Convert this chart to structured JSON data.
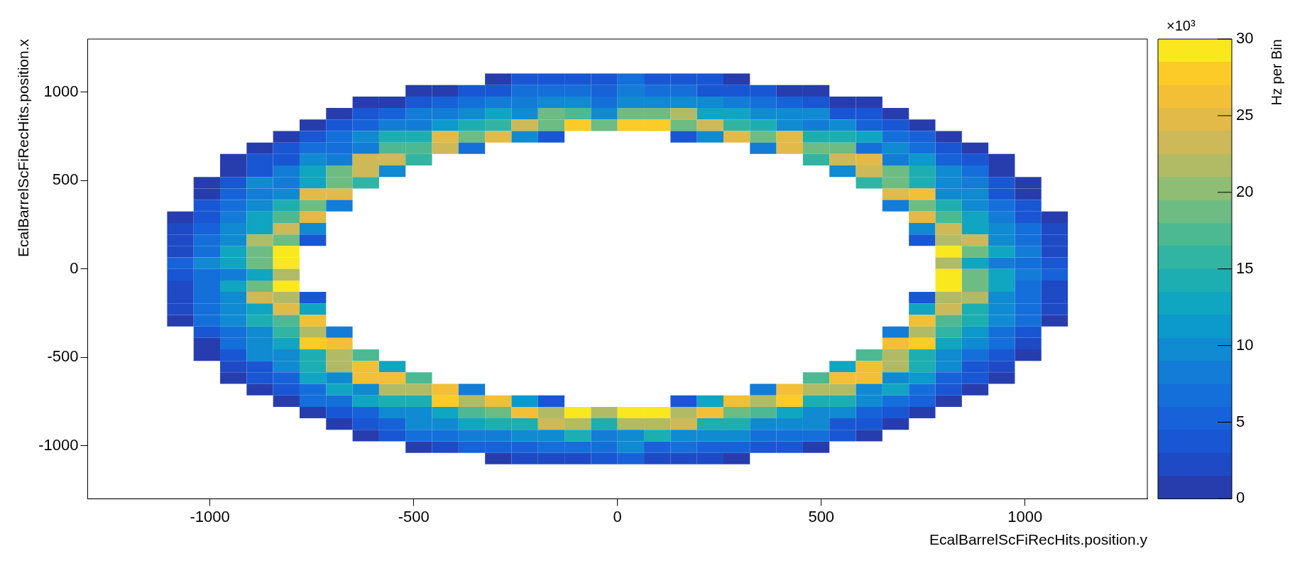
{
  "chart_data": {
    "type": "heatmap",
    "xlabel": "EcalBarrelScFiRecHits.position.y",
    "ylabel": "EcalBarrelScFiRecHits.position.x",
    "clabel": "Hz per Bin",
    "annotations": [
      "×10³"
    ],
    "xlim": [
      -1300,
      1300
    ],
    "ylim": [
      -1300,
      1300
    ],
    "xticks": [
      -1000,
      -500,
      0,
      500,
      1000
    ],
    "yticks": [
      -1000,
      -500,
      0,
      500,
      1000
    ],
    "clim": [
      0,
      30
    ],
    "cticks": [
      0,
      5,
      10,
      15,
      20,
      25,
      30
    ],
    "x": [
      -1072.5,
      -1007.5,
      -942.5,
      -877.5,
      -812.5,
      -747.5,
      -682.5,
      -617.5,
      -552.5,
      -487.5,
      -422.5,
      -357.5,
      -292.5,
      -227.5,
      -162.5,
      -97.5,
      -32.5,
      32.5,
      97.5,
      162.5,
      227.5,
      292.5,
      357.5,
      422.5,
      487.5,
      552.5,
      617.5,
      682.5,
      747.5,
      812.5,
      877.5,
      942.5,
      1007.5,
      1072.5
    ],
    "y": [
      1072.5,
      1007.5,
      942.5,
      877.5,
      812.5,
      747.5,
      682.5,
      617.5,
      552.5,
      487.5,
      422.5,
      357.5,
      292.5,
      227.5,
      162.5,
      97.5,
      32.5,
      -32.5,
      -97.5,
      -162.5,
      -227.5,
      -292.5,
      -357.5,
      -422.5,
      -487.5,
      -552.5,
      -617.5,
      -682.5,
      -747.5,
      -812.5,
      -877.5,
      -942.5,
      -1007.5,
      -1072.5
    ],
    "cells": [
      [
        null,
        null,
        null,
        null,
        null,
        null,
        null,
        null,
        null,
        null,
        null,
        null,
        1,
        3,
        3,
        3,
        3,
        6,
        3,
        3,
        3,
        1,
        null,
        null,
        null,
        null,
        null,
        null,
        null,
        null,
        null,
        null,
        null,
        null
      ],
      [
        null,
        null,
        null,
        null,
        null,
        null,
        null,
        null,
        null,
        1,
        1,
        3,
        3,
        6,
        6,
        7,
        5,
        8,
        6,
        6,
        4,
        3,
        3,
        1,
        1,
        null,
        null,
        null,
        null,
        null,
        null,
        null,
        null,
        null
      ],
      [
        null,
        null,
        null,
        null,
        null,
        null,
        null,
        1,
        1,
        3,
        5,
        6,
        8,
        8,
        9,
        10,
        6,
        10,
        10,
        9,
        9,
        8,
        6,
        5,
        3,
        1,
        1,
        null,
        null,
        null,
        null,
        null,
        null,
        null
      ],
      [
        null,
        null,
        null,
        null,
        null,
        null,
        1,
        3,
        5,
        8,
        8,
        10,
        13,
        10,
        19,
        17,
        10,
        19,
        19,
        21,
        13,
        13,
        10,
        10,
        9,
        4,
        4,
        1,
        null,
        null,
        null,
        null,
        null,
        null
      ],
      [
        null,
        null,
        null,
        null,
        null,
        1,
        3,
        5,
        8,
        8,
        11,
        14,
        16,
        23,
        19,
        27.5,
        19,
        27.5,
        27.5,
        19,
        23,
        16,
        14,
        10,
        8,
        9,
        5,
        3,
        1,
        null,
        null,
        null,
        null,
        null
      ],
      [
        null,
        null,
        null,
        null,
        1,
        3,
        6,
        10,
        14,
        14,
        24.5,
        19,
        24.5,
        10,
        3,
        null,
        null,
        null,
        null,
        3,
        10,
        24.5,
        19,
        24.5,
        14,
        14,
        13,
        6,
        5,
        1,
        null,
        null,
        null,
        null
      ],
      [
        null,
        null,
        null,
        1,
        3,
        6,
        7,
        8,
        17,
        17,
        23,
        6,
        null,
        null,
        null,
        null,
        null,
        null,
        null,
        null,
        null,
        null,
        8,
        24.5,
        18,
        19,
        6,
        10,
        6,
        3,
        1,
        null,
        null,
        null
      ],
      [
        null,
        null,
        1,
        3,
        4,
        10,
        8,
        23,
        23,
        16,
        null,
        null,
        null,
        null,
        null,
        null,
        null,
        null,
        null,
        null,
        null,
        null,
        null,
        null,
        16,
        23,
        24.5,
        8,
        11,
        5,
        4,
        1,
        null,
        null
      ],
      [
        null,
        null,
        1,
        4,
        8,
        13,
        19,
        23,
        10,
        null,
        null,
        null,
        null,
        null,
        null,
        null,
        null,
        null,
        null,
        null,
        null,
        null,
        null,
        null,
        null,
        10,
        23,
        19,
        14,
        10,
        6,
        1,
        null,
        null
      ],
      [
        null,
        1,
        3,
        9,
        8,
        13,
        19,
        16,
        null,
        null,
        null,
        null,
        null,
        null,
        null,
        null,
        null,
        null,
        null,
        null,
        null,
        null,
        null,
        null,
        null,
        null,
        16,
        19,
        14,
        10,
        8,
        3,
        1,
        null
      ],
      [
        null,
        1,
        5,
        8,
        10,
        24.5,
        24.5,
        null,
        null,
        null,
        null,
        null,
        null,
        null,
        null,
        null,
        null,
        null,
        null,
        null,
        null,
        null,
        null,
        null,
        null,
        null,
        null,
        24.5,
        26,
        10,
        10,
        4,
        1,
        null
      ],
      [
        null,
        3,
        6,
        10,
        14,
        19,
        8,
        null,
        null,
        null,
        null,
        null,
        null,
        null,
        null,
        null,
        null,
        null,
        null,
        null,
        null,
        null,
        null,
        null,
        null,
        null,
        null,
        8,
        19,
        14,
        10,
        6,
        3,
        null
      ],
      [
        1,
        3,
        8,
        13,
        17,
        24.5,
        null,
        null,
        null,
        null,
        null,
        null,
        null,
        null,
        null,
        null,
        null,
        null,
        null,
        null,
        null,
        null,
        null,
        null,
        null,
        null,
        null,
        null,
        24.5,
        17,
        13,
        8,
        3,
        1
      ],
      [
        2,
        5,
        10,
        13,
        23,
        10,
        null,
        null,
        null,
        null,
        null,
        null,
        null,
        null,
        null,
        null,
        null,
        null,
        null,
        null,
        null,
        null,
        null,
        null,
        null,
        null,
        null,
        null,
        10,
        23,
        13,
        10,
        6,
        2
      ],
      [
        2,
        7,
        10,
        21,
        19,
        3,
        null,
        null,
        null,
        null,
        null,
        null,
        null,
        null,
        null,
        null,
        null,
        null,
        null,
        null,
        null,
        null,
        null,
        null,
        null,
        null,
        null,
        null,
        3,
        21,
        23,
        10,
        7,
        2
      ],
      [
        2,
        7,
        13,
        19,
        29.5,
        null,
        null,
        null,
        null,
        null,
        null,
        null,
        null,
        null,
        null,
        null,
        null,
        null,
        null,
        null,
        null,
        null,
        null,
        null,
        null,
        null,
        null,
        null,
        null,
        29.5,
        19,
        13,
        8,
        2
      ],
      [
        5,
        10,
        12,
        19,
        29.5,
        null,
        null,
        null,
        null,
        null,
        null,
        null,
        null,
        null,
        null,
        null,
        null,
        null,
        null,
        null,
        null,
        null,
        null,
        null,
        null,
        null,
        null,
        null,
        null,
        21,
        13,
        8,
        6,
        3
      ],
      [
        4,
        6,
        8,
        13,
        21,
        null,
        null,
        null,
        null,
        null,
        null,
        null,
        null,
        null,
        null,
        null,
        null,
        null,
        null,
        null,
        null,
        null,
        null,
        null,
        null,
        null,
        null,
        null,
        null,
        29.5,
        19,
        13,
        8,
        5
      ],
      [
        2,
        7,
        13,
        19,
        29.5,
        null,
        null,
        null,
        null,
        null,
        null,
        null,
        null,
        null,
        null,
        null,
        null,
        null,
        null,
        null,
        null,
        null,
        null,
        null,
        null,
        null,
        null,
        null,
        null,
        29.5,
        19,
        13,
        7,
        2
      ],
      [
        2,
        7,
        10,
        23,
        21,
        3,
        null,
        null,
        null,
        null,
        null,
        null,
        null,
        null,
        null,
        null,
        null,
        null,
        null,
        null,
        null,
        null,
        null,
        null,
        null,
        null,
        null,
        null,
        3,
        21,
        21,
        10,
        7,
        2
      ],
      [
        2,
        6,
        10,
        13,
        24.5,
        13,
        null,
        null,
        null,
        null,
        null,
        null,
        null,
        null,
        null,
        null,
        null,
        null,
        null,
        null,
        null,
        null,
        null,
        null,
        null,
        null,
        null,
        null,
        13,
        23,
        14,
        10,
        6,
        2
      ],
      [
        1,
        6,
        10,
        14,
        17,
        26,
        null,
        null,
        null,
        null,
        null,
        null,
        null,
        null,
        null,
        null,
        null,
        null,
        null,
        null,
        null,
        null,
        null,
        null,
        null,
        null,
        null,
        null,
        26,
        17,
        14,
        10,
        6,
        1
      ],
      [
        null,
        3,
        6,
        10,
        16,
        21,
        8,
        null,
        null,
        null,
        null,
        null,
        null,
        null,
        null,
        null,
        null,
        null,
        null,
        null,
        null,
        null,
        null,
        null,
        null,
        null,
        null,
        8,
        21,
        16,
        11,
        6,
        3,
        null
      ],
      [
        null,
        1,
        6,
        10,
        13,
        27.5,
        26,
        null,
        null,
        null,
        null,
        null,
        null,
        null,
        null,
        null,
        null,
        null,
        null,
        null,
        null,
        null,
        null,
        null,
        null,
        null,
        null,
        26,
        27.5,
        13,
        10,
        6,
        2,
        null
      ],
      [
        null,
        1,
        4,
        10,
        10,
        14,
        21,
        17,
        null,
        null,
        null,
        null,
        null,
        null,
        null,
        null,
        null,
        null,
        null,
        null,
        null,
        null,
        null,
        null,
        null,
        null,
        17,
        21,
        14,
        10,
        6,
        4,
        1,
        null
      ],
      [
        null,
        null,
        2,
        4,
        10,
        14,
        21,
        26,
        13,
        null,
        null,
        null,
        null,
        null,
        null,
        null,
        null,
        null,
        null,
        null,
        null,
        null,
        null,
        null,
        null,
        13,
        26,
        21,
        14,
        10,
        4,
        2,
        null,
        null
      ],
      [
        null,
        null,
        1,
        4,
        5,
        13,
        10,
        26,
        26,
        17,
        null,
        null,
        null,
        null,
        null,
        null,
        null,
        null,
        null,
        null,
        null,
        null,
        null,
        null,
        17,
        26,
        26,
        10,
        11,
        5,
        4,
        1,
        null,
        null
      ],
      [
        null,
        null,
        null,
        1,
        3,
        6,
        13,
        10,
        21,
        21,
        26,
        8,
        null,
        null,
        null,
        null,
        null,
        null,
        null,
        null,
        null,
        null,
        8,
        26,
        21,
        21,
        10,
        13,
        6,
        3,
        1,
        null,
        null,
        null
      ],
      [
        null,
        null,
        null,
        null,
        1,
        6,
        7,
        13,
        14,
        14,
        27.5,
        21,
        26,
        11,
        3,
        null,
        null,
        null,
        null,
        3,
        13,
        26,
        21,
        27.5,
        14,
        14,
        10,
        6,
        5,
        1,
        null,
        null,
        null,
        null
      ],
      [
        null,
        null,
        null,
        null,
        null,
        1,
        3,
        5,
        10,
        10,
        13,
        17,
        18,
        26,
        21,
        29.5,
        21,
        29.5,
        29.5,
        21,
        26,
        18,
        17,
        13,
        10,
        10,
        5,
        4,
        1,
        null,
        null,
        null,
        null,
        null
      ],
      [
        null,
        null,
        null,
        null,
        null,
        null,
        1,
        4,
        5,
        10,
        10,
        13,
        14,
        14,
        23,
        21,
        14,
        21,
        21,
        23,
        14,
        14,
        10,
        10,
        10,
        4,
        4,
        1,
        null,
        null,
        null,
        null,
        null,
        null
      ],
      [
        null,
        null,
        null,
        null,
        null,
        null,
        null,
        1,
        3,
        6,
        7,
        8,
        8,
        10,
        10,
        14,
        8,
        10,
        14,
        10,
        9,
        9,
        7,
        7,
        6,
        3,
        1,
        null,
        null,
        null,
        null,
        null,
        null,
        null
      ],
      [
        null,
        null,
        null,
        null,
        null,
        null,
        null,
        null,
        null,
        1,
        2,
        5,
        5,
        5,
        6,
        7,
        6,
        9,
        5,
        6,
        5,
        5,
        4,
        3,
        1,
        null,
        null,
        null,
        null,
        null,
        null,
        null,
        null,
        null
      ],
      [
        null,
        null,
        null,
        null,
        null,
        null,
        null,
        null,
        null,
        null,
        null,
        null,
        1,
        2,
        2,
        2,
        4,
        5,
        2,
        2,
        2,
        1,
        null,
        null,
        null,
        null,
        null,
        null,
        null,
        null,
        null,
        null,
        null,
        null
      ]
    ]
  }
}
